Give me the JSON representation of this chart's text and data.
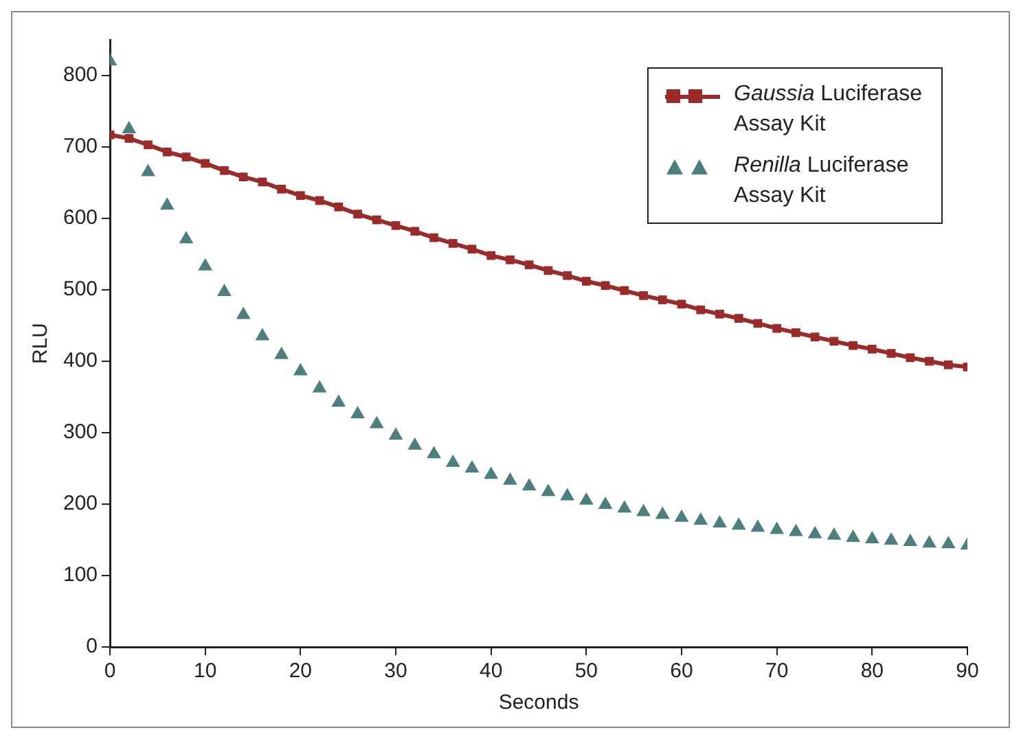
{
  "chart_data": {
    "type": "line",
    "xlabel": "Seconds",
    "ylabel": "RLU",
    "xlim": [
      0,
      90
    ],
    "xticks": [
      0,
      10,
      20,
      30,
      40,
      50,
      60,
      70,
      80,
      90
    ],
    "ylim": [
      0,
      850
    ],
    "yticks": [
      0,
      100,
      200,
      300,
      400,
      500,
      600,
      700,
      800
    ],
    "grid": false,
    "legend": "top right",
    "x": [
      0,
      2,
      4,
      6,
      8,
      10,
      12,
      14,
      16,
      18,
      20,
      22,
      24,
      26,
      28,
      30,
      32,
      34,
      36,
      38,
      40,
      42,
      44,
      46,
      48,
      50,
      52,
      54,
      56,
      58,
      60,
      62,
      64,
      66,
      68,
      70,
      72,
      74,
      76,
      78,
      80,
      82,
      84,
      86,
      88,
      90
    ],
    "series": [
      {
        "name": "Gaussia Luciferase Assay Kit",
        "type": "line",
        "marker": "square",
        "color": "#9b2a2a",
        "values": [
          717,
          712,
          703,
          693,
          686,
          677,
          667,
          658,
          651,
          641,
          632,
          625,
          616,
          606,
          598,
          590,
          582,
          573,
          565,
          557,
          548,
          542,
          535,
          527,
          520,
          512,
          506,
          499,
          492,
          486,
          480,
          472,
          466,
          460,
          453,
          446,
          440,
          434,
          428,
          422,
          417,
          411,
          405,
          400,
          395,
          392
        ]
      },
      {
        "name": "Renilla Luciferase Assay Kit",
        "type": "scatter",
        "marker": "triangle",
        "color": "#4e7f7f",
        "values": [
          820,
          725,
          665,
          618,
          571,
          533,
          497,
          465,
          435,
          409,
          386,
          362,
          342,
          326,
          312,
          296,
          282,
          270,
          258,
          250,
          241,
          233,
          225,
          217,
          211,
          205,
          199,
          194,
          189,
          185,
          181,
          177,
          173,
          170,
          167,
          164,
          161,
          158,
          156,
          153,
          151,
          149,
          147,
          145,
          144,
          142
        ]
      }
    ]
  }
}
